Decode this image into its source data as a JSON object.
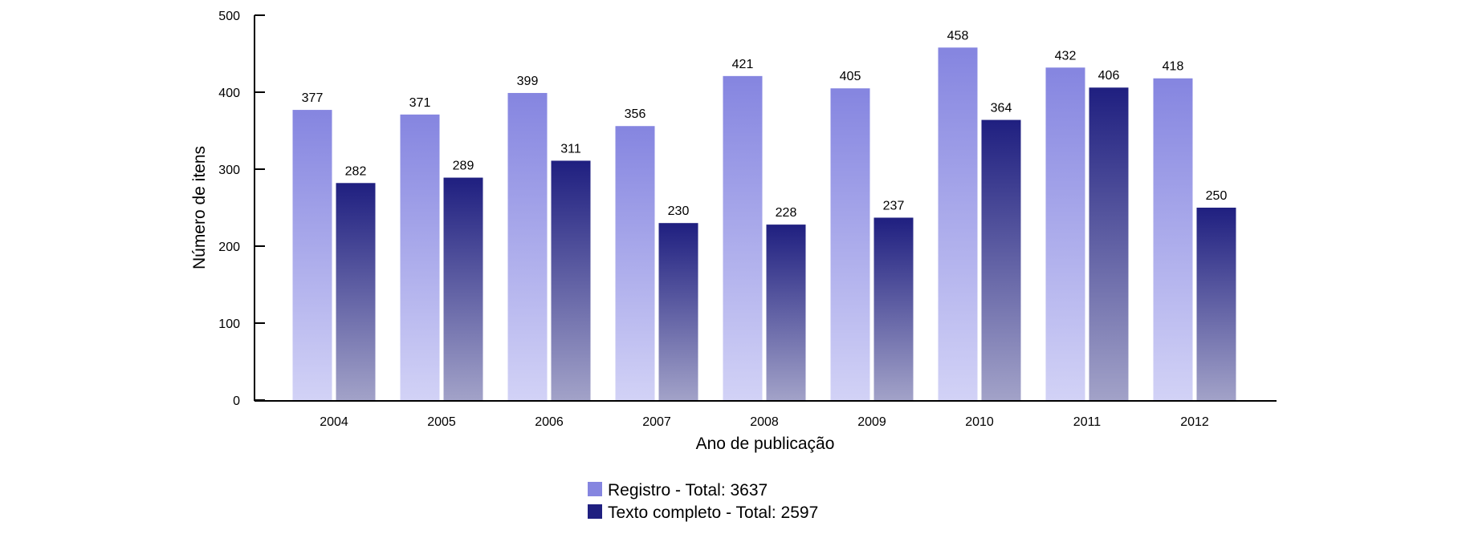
{
  "chart_data": {
    "type": "bar",
    "title": "",
    "xlabel": "Ano de publicação",
    "ylabel": "Número de itens",
    "ylim": [
      0,
      500
    ],
    "yticks": [
      0,
      100,
      200,
      300,
      400,
      500
    ],
    "categories": [
      "2004",
      "2005",
      "2006",
      "2007",
      "2008",
      "2009",
      "2010",
      "2011",
      "2012"
    ],
    "series": [
      {
        "name": "Registro - Total: 3637",
        "values": [
          377,
          371,
          399,
          356,
          421,
          405,
          458,
          432,
          418
        ],
        "color": "#8585e0",
        "color_bottom": "#d2d2f6"
      },
      {
        "name": "Texto completo - Total: 2597",
        "values": [
          282,
          289,
          311,
          230,
          228,
          237,
          364,
          406,
          250
        ],
        "color": "#1f1f80",
        "color_bottom": "#a2a2c8"
      }
    ],
    "legend_position": "bottom-center",
    "grid": false
  }
}
